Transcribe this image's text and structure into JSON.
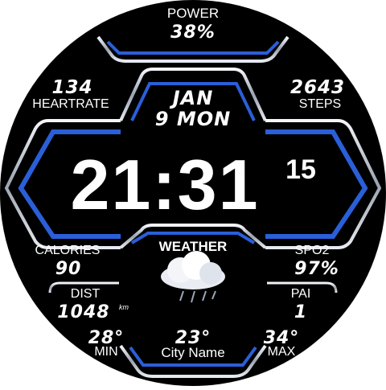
{
  "power": {
    "label": "POWER",
    "value": "38%"
  },
  "date": {
    "month_day": "JAN",
    "date_line": "9 MON"
  },
  "heartrate": {
    "value": "134",
    "label": "HEARTRATE"
  },
  "steps": {
    "value": "2643",
    "label": "STEPS"
  },
  "time": {
    "hours_minutes": "21:31",
    "seconds": "15"
  },
  "calories": {
    "label": "CALORIES",
    "value": "90"
  },
  "spo2": {
    "label": "SPO2",
    "value": "97%"
  },
  "weather": {
    "label": "WEATHER",
    "icon": "cloud-rain-icon",
    "current_temp": "23°",
    "city": "City Name"
  },
  "distance": {
    "label": "DIST",
    "value": "1048",
    "unit": "km"
  },
  "pai": {
    "label": "PAI",
    "value": "1"
  },
  "temp_min": {
    "value": "28°",
    "label": "MIN"
  },
  "temp_max": {
    "value": "34°",
    "label": "MAX"
  },
  "colors": {
    "accent": "#2a5fd8",
    "background": "#000000",
    "frame": "#d8dde6"
  }
}
